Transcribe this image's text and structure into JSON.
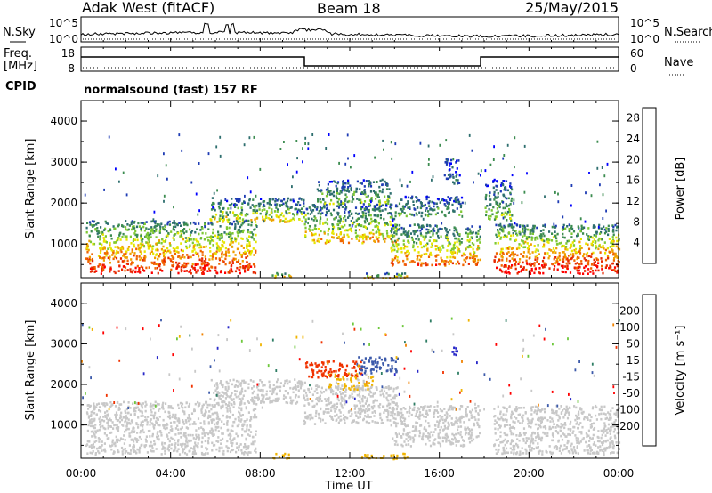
{
  "header": {
    "station": "Adak West (fitACF)",
    "beam": "Beam 18",
    "date": "25/May/2015"
  },
  "summary_labels": {
    "nsky": "N.Sky",
    "nsearch": "N.Search",
    "freq": "Freq.",
    "freq_unit": "[MHz]",
    "nave": "Nave",
    "cpid": "CPID",
    "cpid_value": "normalsound (fast) 157 RF",
    "noise_tick_hi": "10^5",
    "noise_tick_lo": "10^0",
    "freq_tick_hi": "18",
    "freq_tick_lo": "8",
    "nave_tick_hi": "60",
    "nave_tick_lo": "0"
  },
  "colors": {
    "power": [
      "#0000ff",
      "#1e3cb4",
      "#2d6e6e",
      "#3c8c50",
      "#7ec832",
      "#e6e600",
      "#f0a000",
      "#f06400",
      "#e62800",
      "#ff0000"
    ],
    "velocity": [
      "#2828c8",
      "#3c5aaa",
      "#2e7d64",
      "#6ec83c",
      "#c8c8c8",
      "#c8c8c8",
      "#f0b400",
      "#f08200",
      "#f03200",
      "#ff0000"
    ]
  },
  "chart_data": [
    {
      "type": "heatmap",
      "title": "",
      "xlabel": "Time UT",
      "ylabel": "Slant Range [km]",
      "xlim": [
        "00:00",
        "24:00"
      ],
      "ylim": [
        180,
        4500
      ],
      "x_tick_labels": [
        "00:00",
        "04:00",
        "08:00",
        "12:00",
        "16:00",
        "20:00",
        "00:00"
      ],
      "y_tick_labels": [
        "1000",
        "2000",
        "3000",
        "4000"
      ],
      "colorbar": {
        "label": "Power [dB]",
        "tick_labels": [
          "4",
          "8",
          "12",
          "16",
          "20",
          "24",
          "28"
        ],
        "range": [
          0,
          30
        ]
      },
      "regions": [
        {
          "t0": 0.2,
          "t1": 7.8,
          "r0": 300,
          "r1": 1600,
          "peak": 28
        },
        {
          "t0": 5.7,
          "t1": 10.0,
          "r0": 1550,
          "r1": 2150,
          "peak": 18
        },
        {
          "t0": 9.9,
          "t1": 14.1,
          "r0": 1050,
          "r1": 2000,
          "peak": 20
        },
        {
          "t0": 10.5,
          "t1": 13.8,
          "r0": 2000,
          "r1": 2600,
          "peak": 14
        },
        {
          "t0": 13.8,
          "t1": 17.8,
          "r0": 500,
          "r1": 1500,
          "peak": 24
        },
        {
          "t0": 14.0,
          "t1": 17.0,
          "r0": 1700,
          "r1": 2200,
          "peak": 12
        },
        {
          "t0": 18.4,
          "t1": 24.0,
          "r0": 300,
          "r1": 1500,
          "peak": 29
        },
        {
          "t0": 18.0,
          "t1": 19.2,
          "r0": 1600,
          "r1": 2600,
          "peak": 14
        },
        {
          "t0": 16.2,
          "t1": 16.9,
          "r0": 2500,
          "r1": 3100,
          "peak": 8
        },
        {
          "t0": 8.5,
          "t1": 9.4,
          "r0": 180,
          "r1": 320,
          "peak": 24
        },
        {
          "t0": 12.5,
          "t1": 14.6,
          "r0": 180,
          "r1": 320,
          "peak": 22
        }
      ]
    },
    {
      "type": "heatmap",
      "title": "",
      "xlabel": "Time UT",
      "ylabel": "Slant Range [km]",
      "xlim": [
        "00:00",
        "24:00"
      ],
      "ylim": [
        180,
        4500
      ],
      "x_tick_labels": [
        "00:00",
        "04:00",
        "08:00",
        "12:00",
        "16:00",
        "20:00",
        "00:00"
      ],
      "y_tick_labels": [
        "1000",
        "2000",
        "3000",
        "4000"
      ],
      "colorbar": {
        "label": "Velocity [m s⁻¹]",
        "tick_labels": [
          "200",
          "100",
          "50",
          "15",
          "-15",
          "-50",
          "-100",
          "-200"
        ],
        "range": [
          -250,
          250
        ]
      },
      "regions": [
        {
          "t0": 0.2,
          "t1": 7.8,
          "r0": 300,
          "r1": 1600,
          "vel": -5
        },
        {
          "t0": 5.7,
          "t1": 10.0,
          "r0": 1550,
          "r1": 2150,
          "vel": -5
        },
        {
          "t0": 9.9,
          "t1": 14.1,
          "r0": 1050,
          "r1": 2000,
          "vel": -5
        },
        {
          "t0": 11.0,
          "t1": 13.0,
          "r0": 1900,
          "r1": 2300,
          "vel": -60
        },
        {
          "t0": 10.0,
          "t1": 12.5,
          "r0": 2200,
          "r1": 2600,
          "vel": -180
        },
        {
          "t0": 12.3,
          "t1": 14.1,
          "r0": 2300,
          "r1": 2700,
          "vel": 180
        },
        {
          "t0": 13.8,
          "t1": 17.8,
          "r0": 500,
          "r1": 1500,
          "vel": -5
        },
        {
          "t0": 16.4,
          "t1": 16.8,
          "r0": 2750,
          "r1": 3000,
          "vel": 220
        },
        {
          "t0": 18.4,
          "t1": 24.0,
          "r0": 300,
          "r1": 1500,
          "vel": -5
        },
        {
          "t0": 8.5,
          "t1": 9.4,
          "r0": 180,
          "r1": 320,
          "vel": -80
        },
        {
          "t0": 12.5,
          "t1": 14.6,
          "r0": 180,
          "r1": 320,
          "vel": -80
        }
      ]
    }
  ]
}
